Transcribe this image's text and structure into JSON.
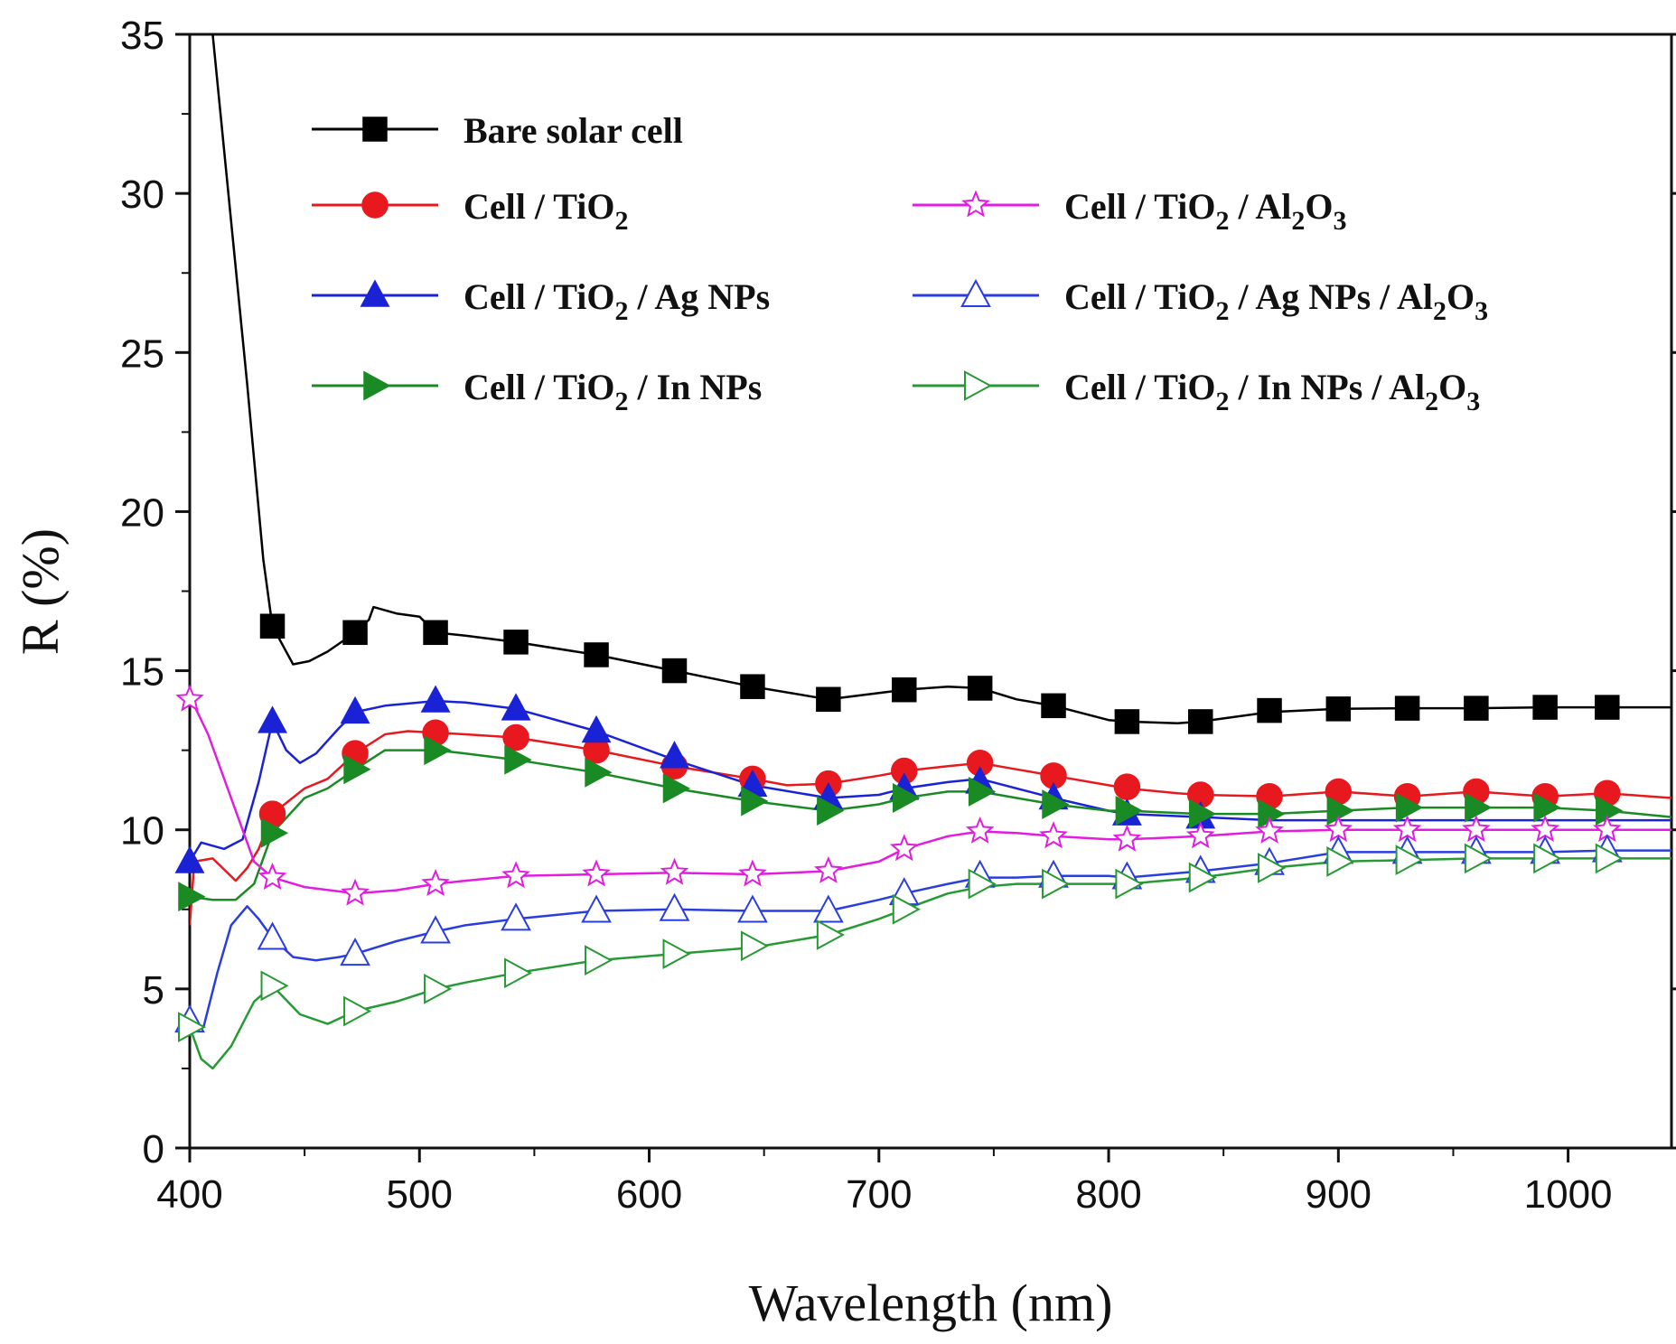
{
  "chart_data": {
    "type": "line",
    "xlabel": "Wavelength (nm)",
    "ylabel": "R (%)",
    "xlim": [
      400,
      1045
    ],
    "ylim": [
      0,
      35
    ],
    "xticks": [
      "400",
      "500",
      "600",
      "700",
      "800",
      "900",
      "1000"
    ],
    "yticks": [
      "0",
      "5",
      "10",
      "15",
      "20",
      "25",
      "30",
      "35"
    ],
    "series": [
      {
        "name": "Bare solar cell",
        "color": "#000000",
        "marker": "square",
        "legend_parts": [
          {
            "t": "Bare solar cell"
          }
        ],
        "x": [
          410,
          425,
          432,
          436,
          445,
          452,
          460,
          472,
          478,
          480,
          490,
          500,
          507,
          520,
          542,
          577,
          611,
          645,
          678,
          700,
          711,
          730,
          744,
          760,
          776,
          800,
          808,
          830,
          840,
          870,
          900,
          930,
          960,
          990,
          1017,
          1045
        ],
        "y": [
          35,
          24,
          18.5,
          16.4,
          15.2,
          15.3,
          15.6,
          16.2,
          16.6,
          17.0,
          16.8,
          16.7,
          16.2,
          16.1,
          15.9,
          15.5,
          15.0,
          14.5,
          14.1,
          14.3,
          14.4,
          14.5,
          14.45,
          14.1,
          13.9,
          13.45,
          13.4,
          13.35,
          13.4,
          13.7,
          13.8,
          13.82,
          13.82,
          13.85,
          13.85,
          13.85
        ],
        "markers": [
          [
            436,
            16.4
          ],
          [
            472,
            16.2
          ],
          [
            507,
            16.2
          ],
          [
            542,
            15.9
          ],
          [
            577,
            15.5
          ],
          [
            611,
            15.0
          ],
          [
            645,
            14.5
          ],
          [
            678,
            14.1
          ],
          [
            711,
            14.4
          ],
          [
            744,
            14.45
          ],
          [
            776,
            13.9
          ],
          [
            808,
            13.4
          ],
          [
            840,
            13.4
          ],
          [
            870,
            13.75
          ],
          [
            900,
            13.8
          ],
          [
            930,
            13.82
          ],
          [
            960,
            13.82
          ],
          [
            990,
            13.85
          ],
          [
            1017,
            13.85
          ]
        ]
      },
      {
        "name": "Cell / TiO2",
        "color": "#e8191e",
        "marker": "circle",
        "legend_parts": [
          {
            "t": "Cell / TiO"
          },
          {
            "t": "2",
            "sub": true
          }
        ],
        "x": [
          400,
          402,
          410,
          420,
          425,
          430,
          436,
          450,
          460,
          472,
          485,
          495,
          507,
          520,
          542,
          577,
          611,
          645,
          660,
          678,
          700,
          711,
          730,
          744,
          760,
          776,
          800,
          808,
          830,
          840,
          870,
          900,
          930,
          960,
          990,
          1017,
          1045
        ],
        "y": [
          7.0,
          9.0,
          9.1,
          8.4,
          8.8,
          9.4,
          10.5,
          11.3,
          11.6,
          12.4,
          13.0,
          13.1,
          13.05,
          13.0,
          12.9,
          12.5,
          12.0,
          11.6,
          11.4,
          11.45,
          11.7,
          11.85,
          12.0,
          12.1,
          11.9,
          11.7,
          11.4,
          11.3,
          11.15,
          11.1,
          11.05,
          11.2,
          11.05,
          11.2,
          11.05,
          11.15,
          11.0
        ],
        "markers": [
          [
            436,
            10.5
          ],
          [
            472,
            12.4
          ],
          [
            507,
            13.05
          ],
          [
            542,
            12.9
          ],
          [
            577,
            12.5
          ],
          [
            611,
            12.0
          ],
          [
            645,
            11.6
          ],
          [
            678,
            11.45
          ],
          [
            711,
            11.85
          ],
          [
            744,
            12.1
          ],
          [
            776,
            11.7
          ],
          [
            808,
            11.35
          ],
          [
            840,
            11.1
          ],
          [
            870,
            11.05
          ],
          [
            900,
            11.2
          ],
          [
            930,
            11.05
          ],
          [
            960,
            11.2
          ],
          [
            990,
            11.05
          ],
          [
            1017,
            11.15
          ]
        ]
      },
      {
        "name": "Cell / TiO2 / Ag NPs",
        "color": "#1a22d6",
        "marker": "triangle",
        "legend_parts": [
          {
            "t": "Cell / TiO"
          },
          {
            "t": "2",
            "sub": true
          },
          {
            "t": " / Ag NPs"
          }
        ],
        "x": [
          400,
          405,
          415,
          423,
          430,
          436,
          442,
          448,
          455,
          465,
          472,
          485,
          500,
          507,
          520,
          542,
          577,
          611,
          645,
          678,
          700,
          711,
          730,
          744,
          760,
          776,
          800,
          808,
          840,
          870,
          900,
          930,
          960,
          990,
          1017,
          1045
        ],
        "y": [
          9.0,
          9.6,
          9.4,
          9.7,
          11.5,
          13.4,
          12.5,
          12.1,
          12.4,
          13.2,
          13.7,
          13.9,
          14.0,
          14.05,
          14.0,
          13.8,
          13.1,
          12.2,
          11.4,
          11.0,
          11.1,
          11.3,
          11.5,
          11.6,
          11.3,
          11.0,
          10.6,
          10.5,
          10.4,
          10.3,
          10.3,
          10.3,
          10.3,
          10.3,
          10.3,
          10.3
        ],
        "markers": [
          [
            400,
            9.0
          ],
          [
            436,
            13.4
          ],
          [
            472,
            13.7
          ],
          [
            507,
            14.05
          ],
          [
            542,
            13.8
          ],
          [
            577,
            13.1
          ],
          [
            611,
            12.3
          ],
          [
            645,
            11.4
          ],
          [
            678,
            11.0
          ],
          [
            711,
            11.3
          ],
          [
            744,
            11.5
          ],
          [
            776,
            11.0
          ],
          [
            808,
            10.5
          ],
          [
            840,
            10.4
          ]
        ]
      },
      {
        "name": "Cell / TiO2 / In NPs",
        "color": "#1a8a25",
        "marker": "triangle-right",
        "legend_parts": [
          {
            "t": "Cell / TiO"
          },
          {
            "t": "2",
            "sub": true
          },
          {
            "t": " / In NPs"
          }
        ],
        "x": [
          400,
          410,
          420,
          428,
          436,
          450,
          460,
          472,
          485,
          500,
          507,
          520,
          542,
          577,
          611,
          645,
          678,
          700,
          711,
          730,
          744,
          760,
          776,
          800,
          808,
          840,
          870,
          900,
          930,
          960,
          990,
          1017,
          1045
        ],
        "y": [
          7.9,
          7.8,
          7.8,
          8.3,
          9.9,
          11.0,
          11.3,
          11.9,
          12.5,
          12.5,
          12.5,
          12.4,
          12.2,
          11.8,
          11.3,
          10.9,
          10.6,
          10.8,
          11.0,
          11.2,
          11.2,
          11.0,
          10.8,
          10.6,
          10.6,
          10.5,
          10.5,
          10.6,
          10.7,
          10.7,
          10.7,
          10.6,
          10.4
        ],
        "markers": [
          [
            400,
            7.9
          ],
          [
            436,
            9.9
          ],
          [
            472,
            11.9
          ],
          [
            507,
            12.5
          ],
          [
            542,
            12.2
          ],
          [
            577,
            11.8
          ],
          [
            611,
            11.3
          ],
          [
            645,
            10.9
          ],
          [
            678,
            10.6
          ],
          [
            711,
            11.0
          ],
          [
            744,
            11.2
          ],
          [
            776,
            10.8
          ],
          [
            808,
            10.6
          ],
          [
            840,
            10.5
          ],
          [
            870,
            10.5
          ],
          [
            900,
            10.6
          ],
          [
            930,
            10.7
          ],
          [
            960,
            10.7
          ],
          [
            990,
            10.7
          ],
          [
            1017,
            10.6
          ]
        ]
      },
      {
        "name": "Cell / TiO2 / Al2O3",
        "color": "#e21ce0",
        "marker": "star",
        "legend_parts": [
          {
            "t": "Cell / TiO"
          },
          {
            "t": "2",
            "sub": true
          },
          {
            "t": " / Al"
          },
          {
            "t": "2",
            "sub": true
          },
          {
            "t": "O"
          },
          {
            "t": "3",
            "sub": true
          }
        ],
        "x": [
          400,
          408,
          418,
          428,
          436,
          450,
          472,
          490,
          507,
          520,
          542,
          577,
          611,
          645,
          678,
          700,
          711,
          730,
          744,
          760,
          776,
          800,
          808,
          840,
          870,
          900,
          930,
          960,
          990,
          1017,
          1045
        ],
        "y": [
          14.2,
          13.0,
          11.0,
          9.0,
          8.5,
          8.2,
          8.0,
          8.1,
          8.3,
          8.4,
          8.55,
          8.6,
          8.65,
          8.6,
          8.7,
          9.0,
          9.4,
          9.8,
          9.95,
          9.9,
          9.8,
          9.7,
          9.7,
          9.8,
          9.95,
          10.0,
          10.0,
          10.0,
          10.0,
          10.0,
          10.0
        ],
        "markers": [
          [
            400,
            14.1
          ],
          [
            436,
            8.5
          ],
          [
            472,
            8.0
          ],
          [
            507,
            8.3
          ],
          [
            542,
            8.55
          ],
          [
            577,
            8.6
          ],
          [
            611,
            8.65
          ],
          [
            645,
            8.6
          ],
          [
            678,
            8.7
          ],
          [
            711,
            9.4
          ],
          [
            744,
            9.95
          ],
          [
            776,
            9.8
          ],
          [
            808,
            9.7
          ],
          [
            840,
            9.8
          ],
          [
            870,
            9.95
          ],
          [
            900,
            10.0
          ],
          [
            930,
            10.0
          ],
          [
            960,
            10.0
          ],
          [
            990,
            10.0
          ],
          [
            1017,
            10.0
          ]
        ]
      },
      {
        "name": "Cell / TiO2 / Ag NPs / Al2O3",
        "color": "#2a3ee0",
        "marker": "triangle-open",
        "legend_parts": [
          {
            "t": "Cell / TiO"
          },
          {
            "t": "2",
            "sub": true
          },
          {
            "t": " / Ag NPs / Al"
          },
          {
            "t": "2",
            "sub": true
          },
          {
            "t": "O"
          },
          {
            "t": "3",
            "sub": true
          }
        ],
        "x": [
          400,
          406,
          412,
          418,
          425,
          430,
          436,
          445,
          455,
          465,
          472,
          490,
          507,
          520,
          542,
          577,
          611,
          645,
          678,
          700,
          711,
          730,
          744,
          760,
          776,
          800,
          808,
          840,
          870,
          900,
          930,
          960,
          990,
          1017,
          1045
        ],
        "y": [
          4.0,
          3.8,
          5.5,
          7.0,
          7.6,
          7.2,
          6.6,
          6.0,
          5.9,
          6.0,
          6.1,
          6.5,
          6.8,
          7.0,
          7.2,
          7.45,
          7.5,
          7.45,
          7.45,
          7.8,
          8.0,
          8.3,
          8.5,
          8.5,
          8.55,
          8.55,
          8.5,
          8.7,
          8.95,
          9.3,
          9.3,
          9.3,
          9.3,
          9.35,
          9.35
        ],
        "markers": [
          [
            400,
            4.0
          ],
          [
            436,
            6.6
          ],
          [
            472,
            6.1
          ],
          [
            507,
            6.8
          ],
          [
            542,
            7.2
          ],
          [
            577,
            7.45
          ],
          [
            611,
            7.5
          ],
          [
            645,
            7.45
          ],
          [
            678,
            7.45
          ],
          [
            711,
            8.0
          ],
          [
            744,
            8.55
          ],
          [
            776,
            8.55
          ],
          [
            808,
            8.5
          ],
          [
            840,
            8.7
          ],
          [
            870,
            8.95
          ],
          [
            900,
            9.3
          ],
          [
            930,
            9.3
          ],
          [
            960,
            9.3
          ],
          [
            990,
            9.3
          ],
          [
            1017,
            9.35
          ]
        ]
      },
      {
        "name": "Cell / TiO2 / In NPs / Al2O3",
        "color": "#279a35",
        "marker": "triangle-right-open",
        "legend_parts": [
          {
            "t": "Cell / TiO"
          },
          {
            "t": "2",
            "sub": true
          },
          {
            "t": " / In NPs / Al"
          },
          {
            "t": "2",
            "sub": true
          },
          {
            "t": "O"
          },
          {
            "t": "3",
            "sub": true
          }
        ],
        "x": [
          400,
          405,
          410,
          418,
          428,
          436,
          448,
          460,
          472,
          490,
          507,
          520,
          542,
          577,
          611,
          645,
          678,
          700,
          711,
          730,
          744,
          760,
          776,
          800,
          808,
          840,
          870,
          900,
          930,
          960,
          990,
          1017,
          1045
        ],
        "y": [
          3.8,
          2.8,
          2.5,
          3.2,
          4.6,
          5.1,
          4.2,
          3.9,
          4.3,
          4.6,
          5.0,
          5.2,
          5.5,
          5.9,
          6.1,
          6.3,
          6.7,
          7.2,
          7.5,
          8.0,
          8.2,
          8.3,
          8.3,
          8.3,
          8.3,
          8.5,
          8.8,
          9.0,
          9.05,
          9.1,
          9.1,
          9.1,
          9.1
        ],
        "markers": [
          [
            400,
            3.8
          ],
          [
            436,
            5.1
          ],
          [
            472,
            4.3
          ],
          [
            507,
            5.0
          ],
          [
            542,
            5.5
          ],
          [
            577,
            5.9
          ],
          [
            611,
            6.1
          ],
          [
            645,
            6.35
          ],
          [
            678,
            6.7
          ],
          [
            711,
            7.5
          ],
          [
            744,
            8.3
          ],
          [
            776,
            8.3
          ],
          [
            808,
            8.3
          ],
          [
            840,
            8.5
          ],
          [
            870,
            8.8
          ],
          [
            900,
            9.0
          ],
          [
            930,
            9.05
          ],
          [
            960,
            9.1
          ],
          [
            990,
            9.1
          ],
          [
            1017,
            9.1
          ]
        ]
      }
    ],
    "legend": "top, inside plot, two columns"
  }
}
